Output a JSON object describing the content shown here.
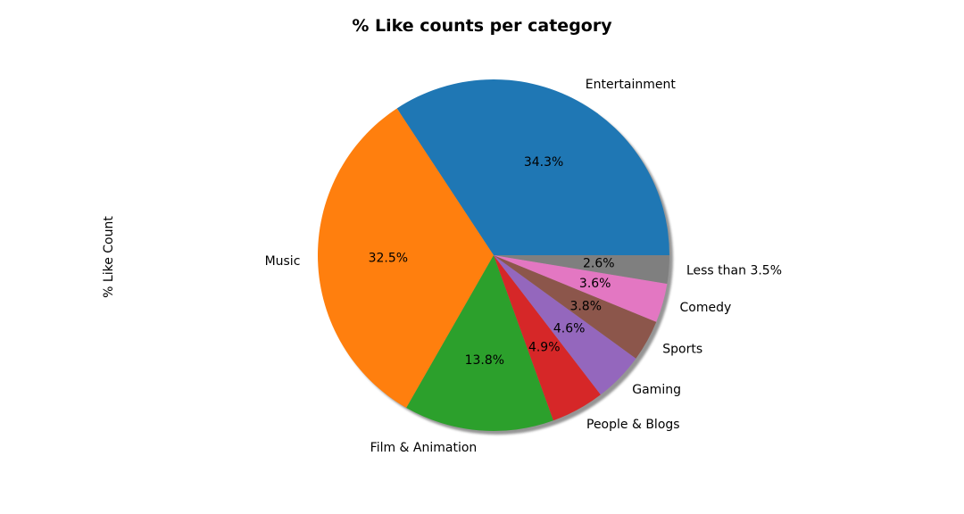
{
  "chart_data": {
    "type": "pie",
    "title": "% Like counts per category",
    "ylabel": "% Like Count",
    "start_angle_deg": 0,
    "direction": "counterclockwise",
    "shadow": true,
    "categories": [
      "Entertainment",
      "Music",
      "Film & Animation",
      "People & Blogs",
      "Gaming",
      "Sports",
      "Comedy",
      "Less than 3.5%"
    ],
    "values": [
      34.3,
      32.5,
      13.8,
      4.9,
      4.6,
      3.8,
      3.6,
      2.6
    ],
    "value_labels": [
      "34.3%",
      "32.5%",
      "13.8%",
      "4.9%",
      "4.6%",
      "3.8%",
      "3.6%",
      "2.6%"
    ],
    "colors": [
      "#1f77b4",
      "#ff7f0e",
      "#2ca02c",
      "#d62728",
      "#9467bd",
      "#8c564b",
      "#e377c2",
      "#7f7f7f"
    ]
  }
}
